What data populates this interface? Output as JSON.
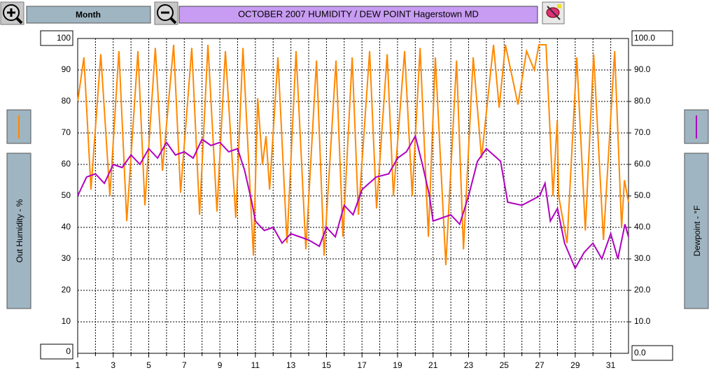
{
  "ui": {
    "period": "Month"
  },
  "chart_data": {
    "type": "line",
    "title": "OCTOBER 2007  HUMIDITY / DEW POINT  Hagerstown MD",
    "y_label": "Out Humidity - %",
    "y2_label": "Dewpoint - °F",
    "xlim": [
      1,
      32
    ],
    "xticks": [
      1,
      3,
      5,
      7,
      9,
      11,
      13,
      15,
      17,
      19,
      21,
      23,
      25,
      27,
      29,
      31
    ],
    "x_minor_ticks": [
      2,
      4,
      6,
      8,
      10,
      12,
      14,
      16,
      18,
      20,
      22,
      24,
      26,
      28,
      30
    ],
    "ylim": [
      0,
      100
    ],
    "yticks": [
      0,
      10,
      20,
      30,
      40,
      50,
      60,
      70,
      80,
      90,
      100
    ],
    "y2lim": [
      0,
      100
    ],
    "y2ticks": [
      {
        "value": 0,
        "label": "0.0"
      },
      {
        "value": 10,
        "label": "10.0"
      },
      {
        "value": 20,
        "label": "20.0"
      },
      {
        "value": 30,
        "label": "30.0"
      },
      {
        "value": 40,
        "label": "40.0"
      },
      {
        "value": 50,
        "label": "50.0"
      },
      {
        "value": 60,
        "label": "60.0"
      },
      {
        "value": 70,
        "label": "70.0"
      },
      {
        "value": 80,
        "label": "80.0"
      },
      {
        "value": 90,
        "label": "90.0"
      },
      {
        "value": 100,
        "label": "100.0"
      }
    ],
    "grid": true,
    "series": [
      {
        "color": "#ff8800",
        "x": [
          1.0,
          1.35,
          1.75,
          2.3,
          2.81,
          3.32,
          3.76,
          4.39,
          4.78,
          5.37,
          5.77,
          6.4,
          6.79,
          7.42,
          7.86,
          8.33,
          8.84,
          9.31,
          9.9,
          10.3,
          10.89,
          11.13,
          11.4,
          11.6,
          11.8,
          12.27,
          12.78,
          13.29,
          13.84,
          14.44,
          14.87,
          15.54,
          15.93,
          16.45,
          16.8,
          17.43,
          17.82,
          18.42,
          18.77,
          19.4,
          19.83,
          20.27,
          20.74,
          21.13,
          21.72,
          22.32,
          22.71,
          23.26,
          23.73,
          24.4,
          24.72,
          25.07,
          25.78,
          26.26,
          26.7,
          26.96,
          27.36,
          27.75,
          27.99,
          28.07,
          28.54,
          29.09,
          29.57,
          30.04,
          30.59,
          31.22,
          31.61,
          31.77,
          32.0
        ],
        "values": [
          80,
          94,
          52,
          95,
          50,
          96,
          42,
          96,
          47,
          97,
          58,
          98,
          51,
          97,
          44,
          98,
          45,
          96,
          43,
          97,
          31,
          81,
          60,
          69,
          52,
          94,
          35,
          96,
          33,
          93,
          31,
          93,
          37,
          94,
          44,
          96,
          46,
          95,
          50,
          96,
          50,
          97,
          37,
          94,
          28,
          93,
          33,
          94,
          62,
          98,
          78,
          98,
          79,
          96,
          90,
          98,
          98,
          50,
          74,
          50,
          35,
          94,
          39,
          95,
          36,
          96,
          40,
          55,
          48
        ]
      },
      {
        "color": "#b000c0",
        "axis": "y2",
        "x": [
          1.0,
          1.5,
          2.0,
          2.5,
          3.0,
          3.5,
          4.0,
          4.5,
          5.0,
          5.5,
          6.0,
          6.5,
          7.0,
          7.5,
          8.0,
          8.5,
          9.0,
          9.5,
          10.0,
          10.4,
          10.8,
          11.0,
          11.5,
          12.0,
          12.5,
          13.0,
          13.5,
          14.0,
          14.6,
          15.0,
          15.5,
          16.0,
          16.5,
          17.0,
          17.8,
          18.5,
          19.0,
          19.5,
          20.0,
          20.4,
          20.8,
          21.0,
          21.5,
          22.0,
          22.5,
          23.0,
          23.5,
          24.0,
          24.8,
          25.2,
          26.0,
          27.0,
          27.3,
          27.6,
          28.0,
          28.4,
          29.0,
          29.5,
          30.0,
          30.5,
          31.0,
          31.4,
          31.8,
          32.0
        ],
        "values": [
          50,
          56,
          57,
          54,
          60,
          59,
          63,
          60,
          65,
          62,
          67,
          63,
          64,
          62,
          68,
          66,
          67,
          64,
          65,
          58,
          48,
          42,
          39,
          40,
          35,
          38,
          37,
          36,
          34,
          40,
          37,
          47,
          44,
          52,
          56,
          57,
          62,
          64,
          69,
          60,
          50,
          42,
          43,
          44,
          41,
          50,
          61,
          65,
          61,
          48,
          47,
          50,
          54,
          42,
          46,
          35,
          27,
          32,
          35,
          30,
          38,
          30,
          41,
          37
        ]
      }
    ]
  }
}
